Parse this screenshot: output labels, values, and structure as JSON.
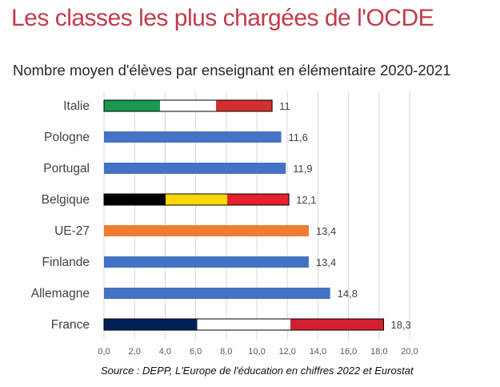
{
  "title": "Les classes les plus chargées de l'OCDE",
  "subtitle": "Nombre moyen d'élèves par enseignant en élémentaire 2020-2021",
  "source": "Source : DEPP, L'Europe de l'éducation en chiffres 2022 et Eurostat",
  "chart_data": {
    "type": "bar",
    "orientation": "horizontal",
    "categories": [
      "Italie",
      "Pologne",
      "Portugal",
      "Belgique",
      "UE-27",
      "Finlande",
      "Allemagne",
      "France"
    ],
    "values": [
      11,
      11.6,
      11.9,
      12.1,
      13.4,
      13.4,
      14.8,
      18.3
    ],
    "value_labels": [
      "11",
      "11,6",
      "11,9",
      "12,1",
      "13,4",
      "13,4",
      "14,8",
      "18,3"
    ],
    "xlim": [
      0,
      20
    ],
    "xticks": [
      "0,0",
      "2,0",
      "4,0",
      "6,0",
      "8,0",
      "10,0",
      "12,0",
      "14,0",
      "16,0",
      "18,0",
      "20,0"
    ],
    "grid": true,
    "bar_colors": [
      [
        "#1a9850",
        "#ffffff",
        "#d32f2f"
      ],
      [
        "#4472c4"
      ],
      [
        "#4472c4"
      ],
      [
        "#000000",
        "#ffd700",
        "#e8202a"
      ],
      [
        "#ed7d31"
      ],
      [
        "#4472c4"
      ],
      [
        "#4472c4"
      ],
      [
        "#002157",
        "#ffffff",
        "#d32030"
      ]
    ]
  }
}
